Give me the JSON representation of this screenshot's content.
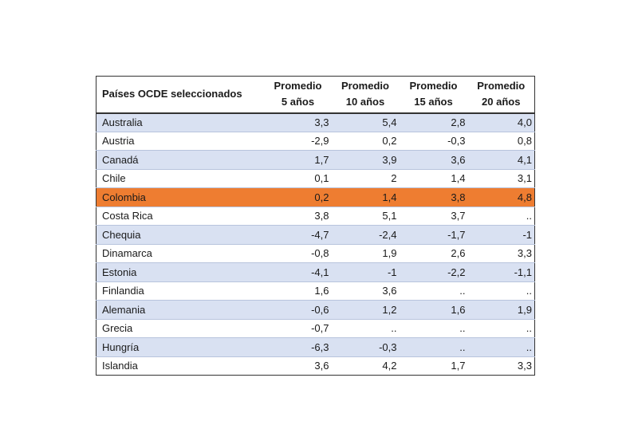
{
  "table": {
    "headers": [
      {
        "line1": "Países OCDE seleccionados",
        "line2": ""
      },
      {
        "line1": "Promedio",
        "line2": "5 años"
      },
      {
        "line1": "Promedio",
        "line2": "10 años"
      },
      {
        "line1": "Promedio",
        "line2": "15 años"
      },
      {
        "line1": "Promedio",
        "line2": "20 años"
      }
    ],
    "rows": [
      {
        "country": "Australia",
        "values": [
          "3,3",
          "5,4",
          "2,8",
          "4,0"
        ]
      },
      {
        "country": "Austria",
        "values": [
          "-2,9",
          "0,2",
          "-0,3",
          "0,8"
        ]
      },
      {
        "country": "Canadá",
        "values": [
          "1,7",
          "3,9",
          "3,6",
          "4,1"
        ]
      },
      {
        "country": "Chile",
        "values": [
          "0,1",
          "2",
          "1,4",
          "3,1"
        ]
      },
      {
        "country": "Colombia",
        "values": [
          "0,2",
          "1,4",
          "3,8",
          "4,8"
        ]
      },
      {
        "country": "Costa Rica",
        "values": [
          "3,8",
          "5,1",
          "3,7",
          ".."
        ]
      },
      {
        "country": "Chequia",
        "values": [
          "-4,7",
          "-2,4",
          "-1,7",
          "-1"
        ]
      },
      {
        "country": "Dinamarca",
        "values": [
          "-0,8",
          "1,9",
          "2,6",
          "3,3"
        ]
      },
      {
        "country": "Estonia",
        "values": [
          "-4,1",
          "-1",
          "-2,2",
          "-1,1"
        ]
      },
      {
        "country": "Finlandia",
        "values": [
          "1,6",
          "3,6",
          "..",
          ".."
        ]
      },
      {
        "country": "Alemania",
        "values": [
          "-0,6",
          "1,2",
          "1,6",
          "1,9"
        ]
      },
      {
        "country": "Grecia",
        "values": [
          "-0,7",
          "..",
          "..",
          ".."
        ]
      },
      {
        "country": "Hungría",
        "values": [
          "-6,3",
          "-0,3",
          "..",
          ".."
        ]
      },
      {
        "country": "Islandia",
        "values": [
          "3,6",
          "4,2",
          "1,7",
          "3,3"
        ]
      }
    ],
    "highlight_country": "Colombia",
    "colors": {
      "band": "#d9e1f2",
      "highlight": "#ee7d31",
      "border": "#333333"
    }
  }
}
